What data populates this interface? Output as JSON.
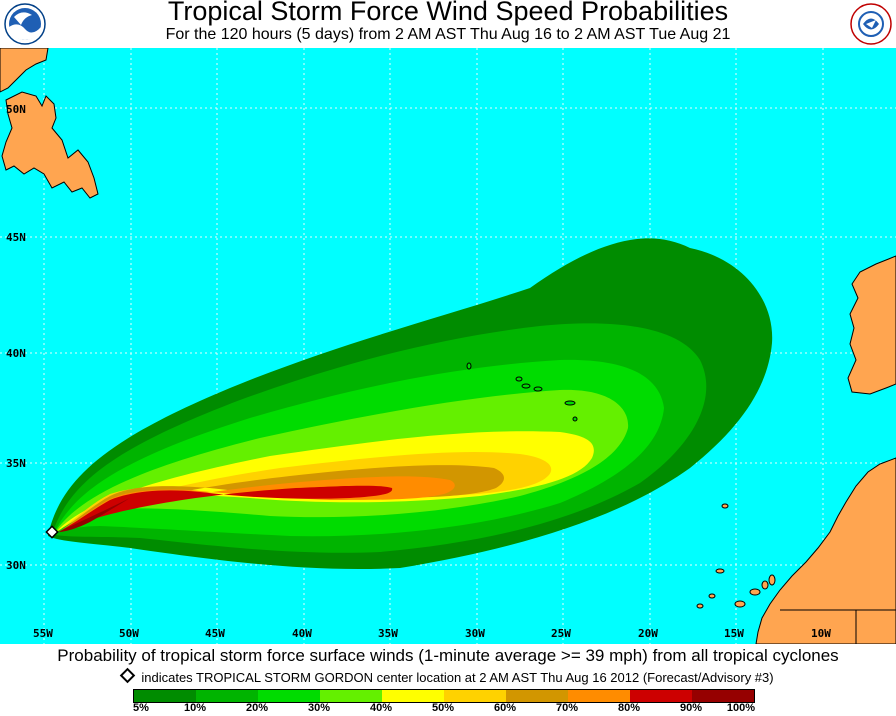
{
  "title": "Tropical Storm Force Wind Speed Probabilities",
  "subtitle": "For the 120 hours (5 days) from 2 AM AST Thu Aug 16 to 2 AM AST Tue Aug 21",
  "logos": {
    "left": "NOAA",
    "right": "NATIONAL WEATHER SERVICE"
  },
  "latitudes": [
    "50N",
    "45N",
    "40N",
    "35N",
    "30N"
  ],
  "longitudes": [
    "55W",
    "50W",
    "45W",
    "40W",
    "35W",
    "30W",
    "25W",
    "20W",
    "15W",
    "10W"
  ],
  "caption": "Probability of tropical storm force surface winds (1-minute average >= 39 mph) from all tropical cyclones",
  "note": "indicates TROPICAL STORM GORDON center location at 2 AM AST Thu Aug 16 2012 (Forecast/Advisory #3)",
  "legend": {
    "labels": [
      "5%",
      "10%",
      "20%",
      "30%",
      "40%",
      "50%",
      "60%",
      "70%",
      "80%",
      "90%",
      "100%"
    ],
    "colors": [
      "#008c00",
      "#00b400",
      "#00dc00",
      "#64f000",
      "#ffff00",
      "#ffd200",
      "#d29600",
      "#ff8c00",
      "#cd0000",
      "#960000",
      "#8c008c"
    ]
  },
  "colors": {
    "ocean": "#00ffff",
    "land": "#ffa550"
  }
}
